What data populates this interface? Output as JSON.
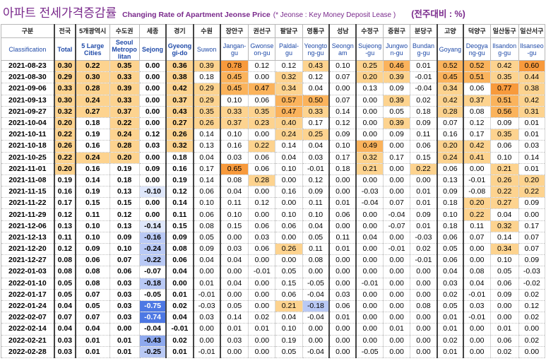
{
  "title": {
    "korean": "아파트 전세가격증감률",
    "english": "Changing Rate of Apartment Jeonse Price",
    "note": "(* Jeonse : Key Money Deposit Lease )",
    "unit": "(전주대비 : %)"
  },
  "headers": {
    "korean": [
      "구분",
      "전국",
      "5개광역시",
      "수도권",
      "세종",
      "경기",
      "수원",
      "장안구",
      "권선구",
      "팔달구",
      "영통구",
      "성남",
      "수정구",
      "중원구",
      "분당구",
      "고양",
      "덕양구",
      "일산동구",
      "일산서구"
    ],
    "english": [
      "Classification",
      "Total",
      "5 Large\nCities",
      "Seoul\nMetropo\nlitan",
      "Sejong",
      "Gyeong\ngi-do",
      "Suwon",
      "Jangan-\ngu",
      "Gwonse\non-gu",
      "Paldal-\ngu",
      "Yeongto\nng-gu",
      "Seongn\nam",
      "Sujeong\n-gu",
      "Jungwo\nn-gu",
      "Bundan\ng-gu",
      "Goyang",
      "Deogya\nng-gu",
      "Ilsandon\ng-gu",
      "Ilsanseo\n-gu"
    ]
  },
  "rows": [
    {
      "date": "2021-08-23",
      "values": [
        "0.30",
        "0.22",
        "0.35",
        "0.00",
        "0.36",
        "0.39",
        "0.78",
        "0.12",
        "0.12",
        "0.43",
        "0.10",
        "0.25",
        "0.46",
        "0.01",
        "0.52",
        "0.52",
        "0.42",
        "0.60"
      ]
    },
    {
      "date": "2021-08-30",
      "values": [
        "0.29",
        "0.30",
        "0.33",
        "0.00",
        "0.38",
        "0.18",
        "0.45",
        "0.00",
        "0.32",
        "0.12",
        "0.07",
        "0.20",
        "0.39",
        "-0.01",
        "0.45",
        "0.51",
        "0.35",
        "0.44"
      ]
    },
    {
      "date": "2021-09-06",
      "values": [
        "0.33",
        "0.28",
        "0.39",
        "0.00",
        "0.42",
        "0.29",
        "0.45",
        "0.47",
        "0.34",
        "0.04",
        "0.00",
        "0.13",
        "0.09",
        "-0.04",
        "0.34",
        "0.06",
        "0.77",
        "0.38"
      ]
    },
    {
      "date": "2021-09-13",
      "values": [
        "0.30",
        "0.24",
        "0.33",
        "0.00",
        "0.37",
        "0.29",
        "0.10",
        "0.06",
        "0.57",
        "0.50",
        "0.07",
        "0.00",
        "0.39",
        "0.02",
        "0.42",
        "0.37",
        "0.51",
        "0.42"
      ]
    },
    {
      "date": "2021-09-27",
      "values": [
        "0.32",
        "0.27",
        "0.37",
        "0.00",
        "0.43",
        "0.35",
        "0.33",
        "0.35",
        "0.47",
        "0.33",
        "0.14",
        "0.00",
        "0.05",
        "0.18",
        "0.28",
        "0.08",
        "0.56",
        "0.31"
      ]
    },
    {
      "date": "2021-10-04",
      "values": [
        "0.20",
        "0.18",
        "0.22",
        "0.00",
        "0.27",
        "0.26",
        "0.37",
        "0.23",
        "0.40",
        "0.17",
        "0.12",
        "0.00",
        "0.39",
        "0.09",
        "0.07",
        "0.12",
        "0.09",
        "0.01"
      ]
    },
    {
      "date": "2021-10-11",
      "values": [
        "0.22",
        "0.19",
        "0.24",
        "0.12",
        "0.26",
        "0.14",
        "0.10",
        "0.00",
        "0.24",
        "0.25",
        "0.09",
        "0.00",
        "0.09",
        "0.11",
        "0.16",
        "0.17",
        "0.35",
        "0.01"
      ]
    },
    {
      "date": "2021-10-18",
      "values": [
        "0.26",
        "0.16",
        "0.28",
        "0.03",
        "0.32",
        "0.13",
        "0.16",
        "0.22",
        "0.14",
        "0.04",
        "0.10",
        "0.49",
        "0.00",
        "0.06",
        "0.20",
        "0.42",
        "0.06",
        "0.03"
      ]
    },
    {
      "date": "2021-10-25",
      "values": [
        "0.22",
        "0.24",
        "0.20",
        "0.00",
        "0.18",
        "0.04",
        "0.03",
        "0.06",
        "0.04",
        "0.03",
        "0.17",
        "0.32",
        "0.17",
        "0.15",
        "0.24",
        "0.41",
        "0.10",
        "0.14"
      ]
    },
    {
      "date": "2021-11-01",
      "values": [
        "0.20",
        "0.16",
        "0.19",
        "0.09",
        "0.16",
        "0.17",
        "0.65",
        "0.06",
        "0.10",
        "-0.01",
        "0.18",
        "0.21",
        "0.00",
        "0.22",
        "0.06",
        "0.00",
        "0.21",
        "0.01"
      ]
    },
    {
      "date": "2021-11-08",
      "values": [
        "0.19",
        "0.14",
        "0.18",
        "0.00",
        "0.19",
        "0.14",
        "0.08",
        "0.28",
        "0.00",
        "0.12",
        "0.00",
        "0.00",
        "0.00",
        "0.00",
        "0.13",
        "-0.01",
        "0.26",
        "0.20"
      ]
    },
    {
      "date": "2021-11-15",
      "values": [
        "0.16",
        "0.19",
        "0.13",
        "-0.10",
        "0.12",
        "0.06",
        "0.04",
        "0.00",
        "0.16",
        "0.09",
        "0.00",
        "-0.03",
        "0.00",
        "0.01",
        "0.09",
        "-0.08",
        "0.22",
        "0.22"
      ]
    },
    {
      "date": "2021-11-22",
      "values": [
        "0.17",
        "0.15",
        "0.15",
        "0.00",
        "0.14",
        "0.10",
        "0.11",
        "0.12",
        "0.00",
        "0.11",
        "0.01",
        "-0.04",
        "0.07",
        "0.01",
        "0.18",
        "0.20",
        "0.27",
        "0.09"
      ]
    },
    {
      "date": "2021-11-29",
      "values": [
        "0.12",
        "0.11",
        "0.12",
        "0.00",
        "0.11",
        "0.06",
        "0.10",
        "0.00",
        "0.10",
        "0.10",
        "0.06",
        "0.00",
        "-0.04",
        "0.09",
        "0.10",
        "0.22",
        "0.04",
        "0.00"
      ]
    },
    {
      "date": "2021-12-06",
      "values": [
        "0.13",
        "0.10",
        "0.13",
        "-0.14",
        "0.15",
        "0.08",
        "0.15",
        "0.06",
        "0.06",
        "0.04",
        "0.00",
        "0.00",
        "-0.07",
        "0.01",
        "0.18",
        "0.11",
        "0.32",
        "0.17"
      ]
    },
    {
      "date": "2021-12-13",
      "values": [
        "0.11",
        "0.10",
        "0.09",
        "-0.16",
        "0.09",
        "0.05",
        "0.00",
        "0.03",
        "0.00",
        "0.05",
        "0.11",
        "0.04",
        "0.00",
        "-0.03",
        "0.06",
        "0.07",
        "0.14",
        "0.07"
      ]
    },
    {
      "date": "2021-12-20",
      "values": [
        "0.12",
        "0.09",
        "0.10",
        "-0.24",
        "0.08",
        "0.09",
        "0.03",
        "0.06",
        "0.26",
        "0.11",
        "0.01",
        "0.00",
        "-0.01",
        "0.02",
        "0.05",
        "0.00",
        "0.34",
        "0.07"
      ]
    },
    {
      "date": "2021-12-27",
      "values": [
        "0.08",
        "0.06",
        "0.07",
        "-0.22",
        "0.06",
        "0.04",
        "0.04",
        "0.00",
        "0.00",
        "0.08",
        "0.00",
        "0.00",
        "0.00",
        "-0.01",
        "0.06",
        "0.00",
        "0.10",
        "0.09"
      ]
    },
    {
      "date": "2022-01-03",
      "values": [
        "0.08",
        "0.08",
        "0.06",
        "-0.07",
        "0.04",
        "0.00",
        "0.00",
        "-0.01",
        "0.05",
        "0.00",
        "0.00",
        "0.00",
        "0.00",
        "0.00",
        "0.04",
        "0.08",
        "0.05",
        "-0.03"
      ]
    },
    {
      "date": "2022-01-10",
      "values": [
        "0.05",
        "0.08",
        "0.03",
        "-0.18",
        "0.00",
        "0.01",
        "0.04",
        "0.00",
        "0.15",
        "-0.05",
        "0.00",
        "-0.01",
        "0.00",
        "0.00",
        "0.03",
        "0.04",
        "0.06",
        "-0.02"
      ]
    },
    {
      "date": "2022-01-17",
      "values": [
        "0.05",
        "0.07",
        "0.03",
        "-0.05",
        "0.01",
        "-0.01",
        "0.00",
        "0.00",
        "0.06",
        "-0.04",
        "0.03",
        "0.00",
        "0.00",
        "0.00",
        "0.02",
        "-0.01",
        "0.09",
        "0.02"
      ]
    },
    {
      "date": "2022-01-24",
      "values": [
        "0.04",
        "0.05",
        "0.03",
        "-0.75",
        "0.02",
        "-0.03",
        "0.05",
        "0.00",
        "0.21",
        "-0.18",
        "0.06",
        "0.00",
        "0.00",
        "0.08",
        "0.05",
        "0.03",
        "0.00",
        "0.12"
      ]
    },
    {
      "date": "2022-02-07",
      "values": [
        "0.07",
        "0.07",
        "0.03",
        "-0.74",
        "0.04",
        "0.03",
        "0.14",
        "0.02",
        "0.04",
        "-0.04",
        "0.01",
        "0.00",
        "0.00",
        "0.00",
        "0.01",
        "-0.01",
        "0.00",
        "0.02"
      ]
    },
    {
      "date": "2022-02-14",
      "values": [
        "0.04",
        "0.04",
        "0.00",
        "-0.04",
        "-0.01",
        "0.00",
        "0.01",
        "0.01",
        "0.10",
        "0.00",
        "0.00",
        "0.00",
        "0.01",
        "0.00",
        "0.01",
        "0.00",
        "0.01",
        "0.00"
      ]
    },
    {
      "date": "2022-02-21",
      "values": [
        "0.03",
        "0.01",
        "0.01",
        "-0.43",
        "0.02",
        "0.00",
        "0.03",
        "0.00",
        "0.19",
        "0.00",
        "0.00",
        "0.00",
        "0.00",
        "0.00",
        "0.02",
        "0.00",
        "0.06",
        "0.02"
      ]
    },
    {
      "date": "2022-02-28",
      "values": [
        "0.03",
        "0.01",
        "0.01",
        "-0.25",
        "0.01",
        "-0.01",
        "0.00",
        "0.00",
        "0.05",
        "-0.04",
        "0.00",
        "-0.05",
        "0.00",
        "0.00",
        "0.01",
        "0.00",
        "0.02",
        "0.00"
      ]
    }
  ]
}
